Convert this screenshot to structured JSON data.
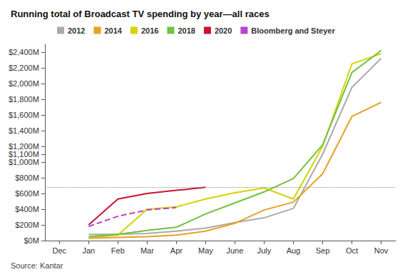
{
  "chart_data": {
    "type": "line",
    "title": "Running total of Broadcast TV spending by year—all races",
    "source": "Source: Kantar",
    "categories": [
      "Dec",
      "Jan",
      "Feb",
      "Mar",
      "Apr",
      "May",
      "June",
      "July",
      "Aug",
      "Sep",
      "Oct",
      "Nov"
    ],
    "series": [
      {
        "name": "2012",
        "color": "#aaaaaa",
        "line_style": "solid",
        "values": [
          null,
          80,
          80,
          90,
          120,
          160,
          230,
          290,
          410,
          1100,
          1950,
          2320
        ]
      },
      {
        "name": "2014",
        "color": "#e8a020",
        "line_style": "solid",
        "values": [
          null,
          30,
          40,
          50,
          70,
          120,
          220,
          390,
          490,
          850,
          1580,
          1760
        ]
      },
      {
        "name": "2016",
        "color": "#d4d400",
        "line_style": "solid",
        "values": [
          null,
          40,
          70,
          400,
          430,
          530,
          610,
          670,
          530,
          1200,
          2250,
          2380
        ]
      },
      {
        "name": "2018",
        "color": "#72c040",
        "line_style": "solid",
        "values": [
          null,
          50,
          80,
          130,
          170,
          340,
          480,
          620,
          790,
          1220,
          2140,
          2420
        ]
      },
      {
        "name": "2020",
        "color": "#cc1133",
        "line_style": "solid",
        "values": [
          null,
          200,
          530,
          600,
          640,
          680,
          null,
          null,
          null,
          null,
          null,
          null
        ]
      },
      {
        "name": "Bloomberg and Steyer",
        "color": "#bb44cc",
        "line_style": "dashed",
        "values": [
          null,
          180,
          310,
          390,
          420,
          null,
          null,
          null,
          null,
          null,
          null,
          null
        ]
      }
    ],
    "reference_line_y": 680,
    "ylim": [
      0,
      2500
    ],
    "yticks": [
      {
        "value": 0,
        "label": "$0M"
      },
      {
        "value": 200,
        "label": "$200M"
      },
      {
        "value": 400,
        "label": "$400M"
      },
      {
        "value": 600,
        "label": "$600M"
      },
      {
        "value": 800,
        "label": "$800M"
      },
      {
        "value": 1000,
        "label": "$1,000M"
      },
      {
        "value": 1100,
        "label": "$1,100M"
      },
      {
        "value": 1200,
        "label": "$1,200M"
      },
      {
        "value": 1400,
        "label": "$1,400M"
      },
      {
        "value": 1600,
        "label": "$1,600M"
      },
      {
        "value": 1800,
        "label": "$1,800M"
      },
      {
        "value": 2000,
        "label": "$2,000M"
      },
      {
        "value": 2200,
        "label": "$2,200M"
      },
      {
        "value": 2400,
        "label": "$2,400M"
      }
    ],
    "grid": false,
    "legend": "upper left"
  }
}
